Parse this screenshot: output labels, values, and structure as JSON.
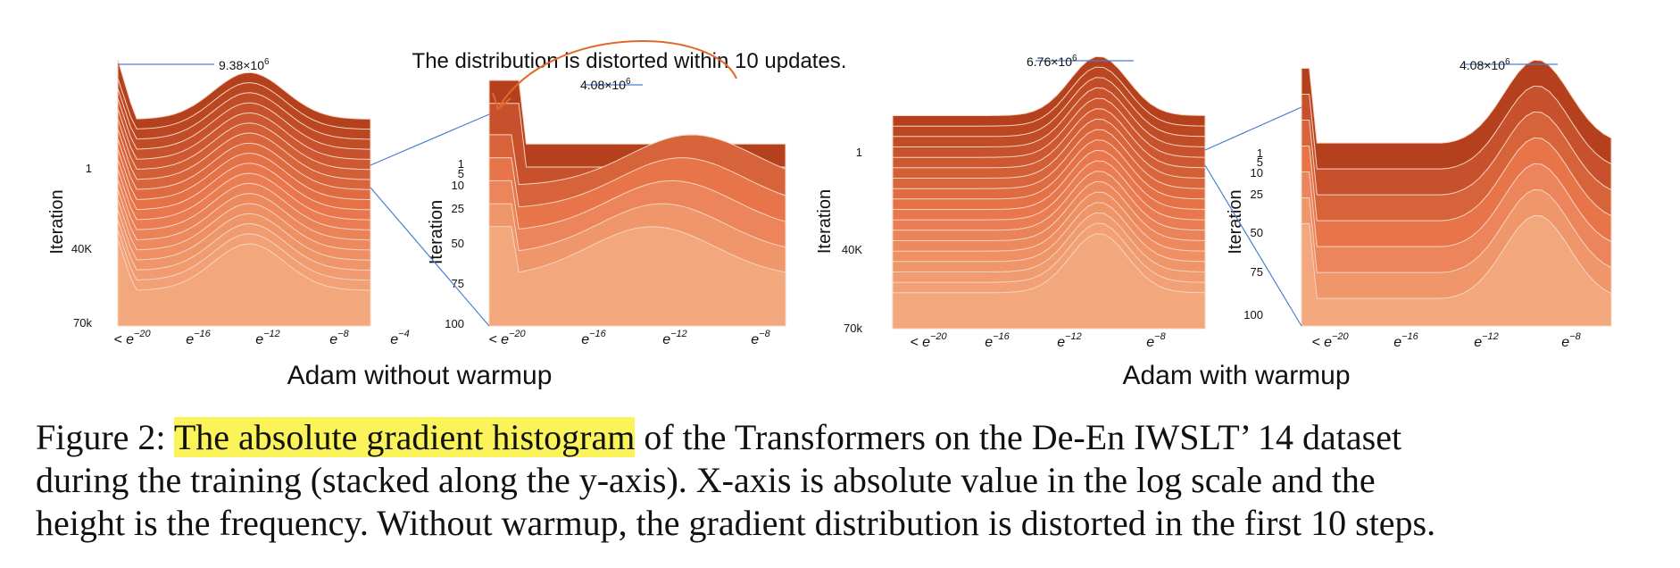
{
  "panels": [
    {
      "id": "no-warmup-full",
      "ylabel": "Iteration",
      "yticks": [
        "1",
        "40K",
        "70k"
      ],
      "xticks": [
        {
          "prefix": "< e",
          "exp": "−20"
        },
        {
          "prefix": "e",
          "exp": "−16"
        },
        {
          "prefix": "e",
          "exp": "−12"
        },
        {
          "prefix": "e",
          "exp": "−8"
        },
        {
          "prefix": "e",
          "exp": "−4"
        }
      ],
      "peak_label": "9.38×10",
      "peak_exp": "6"
    },
    {
      "id": "no-warmup-zoom",
      "ylabel": "Iteration",
      "yticks": [
        "1",
        "5",
        "10",
        "25",
        "50",
        "75",
        "100"
      ],
      "xticks": [
        {
          "prefix": "< e",
          "exp": "−20"
        },
        {
          "prefix": "e",
          "exp": "−16"
        },
        {
          "prefix": "e",
          "exp": "−12"
        },
        {
          "prefix": "e",
          "exp": "−8"
        }
      ],
      "peak_label": "4.08×10",
      "peak_exp": "6"
    },
    {
      "id": "warmup-full",
      "ylabel": "Iteration",
      "yticks": [
        "1",
        "40K",
        "70k"
      ],
      "xticks": [
        {
          "prefix": "< e",
          "exp": "−20"
        },
        {
          "prefix": "e",
          "exp": "−16"
        },
        {
          "prefix": "e",
          "exp": "−12"
        },
        {
          "prefix": "e",
          "exp": "−8"
        }
      ],
      "peak_label": "6.76×10",
      "peak_exp": "6"
    },
    {
      "id": "warmup-zoom",
      "ylabel": "Iteration",
      "yticks": [
        "1",
        "5",
        "10",
        "25",
        "50",
        "75",
        "100"
      ],
      "xticks": [
        {
          "prefix": "< e",
          "exp": "−20"
        },
        {
          "prefix": "e",
          "exp": "−16"
        },
        {
          "prefix": "e",
          "exp": "−12"
        },
        {
          "prefix": "e",
          "exp": "−8"
        }
      ],
      "peak_label": "4.08×10",
      "peak_exp": "6"
    }
  ],
  "group_titles": {
    "left": "Adam without warmup",
    "right": "Adam with warmup"
  },
  "annotation": "The distribution is distorted within 10 updates.",
  "caption": {
    "highlight": "The absolute gradient histogram",
    "prefix": "Figure 2:",
    "line1_rest": "of the Transformers on the De-En IWSLT’ 14 dataset",
    "line2": "during the training (stacked along the y-axis).  X-axis is absolute value in the log scale and the",
    "line3": "height is the frequency. Without warmup, the gradient distribution is distorted in the first 10 steps."
  },
  "colors": {
    "dark": "#b5401d",
    "mid": "#e8744a",
    "light": "#f3a77c",
    "leader": "#4a7fd0",
    "arrow": "#e06a2c",
    "highlight": "#fbf35a"
  }
}
